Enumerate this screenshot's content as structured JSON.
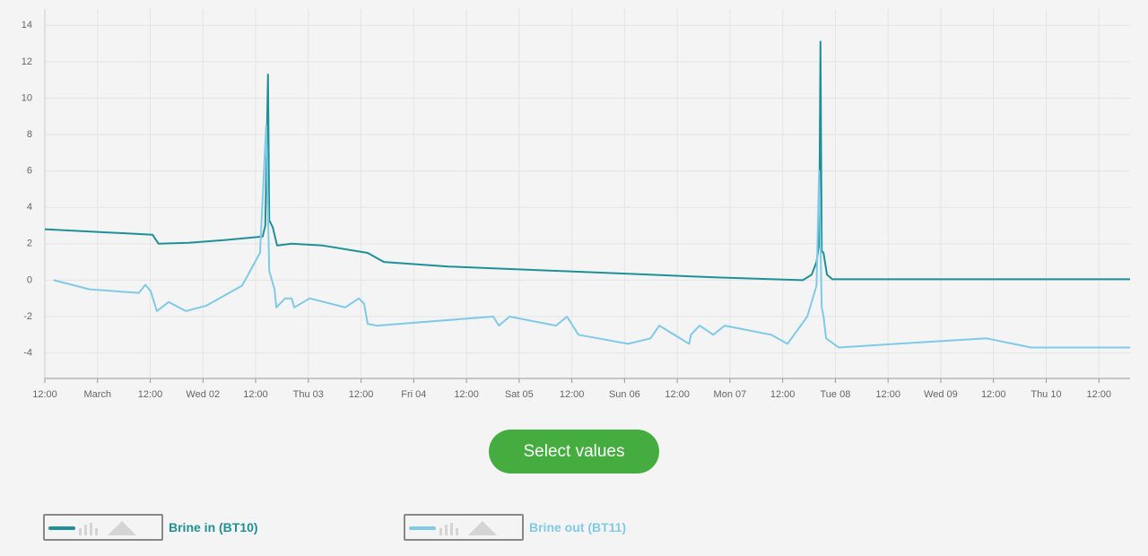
{
  "chart_data": {
    "type": "line",
    "xlim": [
      0,
      247.1
    ],
    "xticks": [
      {
        "value": 0,
        "label": "12:00"
      },
      {
        "value": 12,
        "label": "March"
      },
      {
        "value": 24,
        "label": "12:00"
      },
      {
        "value": 36,
        "label": "Wed 02"
      },
      {
        "value": 48,
        "label": "12:00"
      },
      {
        "value": 60,
        "label": "Thu 03"
      },
      {
        "value": 72,
        "label": "12:00"
      },
      {
        "value": 84,
        "label": "Fri 04"
      },
      {
        "value": 96,
        "label": "12:00"
      },
      {
        "value": 108,
        "label": "Sat 05"
      },
      {
        "value": 120,
        "label": "12:00"
      },
      {
        "value": 132,
        "label": "Sun 06"
      },
      {
        "value": 144,
        "label": "12:00"
      },
      {
        "value": 156,
        "label": "Mon 07"
      },
      {
        "value": 168,
        "label": "12:00"
      },
      {
        "value": 180,
        "label": "Tue 08"
      },
      {
        "value": 192,
        "label": "12:00"
      },
      {
        "value": 204,
        "label": "Wed 09"
      },
      {
        "value": 216,
        "label": "12:00"
      },
      {
        "value": 228,
        "label": "Thu 10"
      },
      {
        "value": 240,
        "label": "12:00"
      }
    ],
    "ylim": [
      -5.4,
      14.9
    ],
    "yticks": [
      -4,
      -2,
      0,
      2,
      4,
      6,
      8,
      10,
      12,
      14
    ],
    "grid": true,
    "series": [
      {
        "name": "Brine in (BT10)",
        "color": "#1e9096",
        "x": [
          0,
          24.5,
          25.9,
          32.7,
          40.8,
          49.6,
          50.2,
          50.8,
          51.1,
          51.9,
          52.9,
          56.2,
          63.3,
          73.5,
          77.2,
          91.9,
          112.3,
          132.8,
          153.2,
          172.6,
          174.6,
          175.7,
          176.3,
          176.6,
          176.9,
          177.3,
          178.1,
          179.3,
          247.1
        ],
        "values": [
          2.8,
          2.5,
          2.0,
          2.05,
          2.2,
          2.4,
          3.0,
          11.3,
          3.3,
          2.9,
          1.9,
          2.0,
          1.9,
          1.5,
          1.0,
          0.75,
          0.55,
          0.35,
          0.15,
          0.0,
          0.3,
          1.0,
          2.0,
          13.1,
          1.6,
          1.5,
          0.3,
          0.05,
          0.05
        ]
      },
      {
        "name": "Brine out (BT11)",
        "color": "#7fcae6",
        "x": [
          2.0,
          10.2,
          21.4,
          22.9,
          24.1,
          25.5,
          28.2,
          32.1,
          36.8,
          44.9,
          49.0,
          50.4,
          51.1,
          52.3,
          52.7,
          54.7,
          56.2,
          56.8,
          60.3,
          68.4,
          71.5,
          72.7,
          73.5,
          75.6,
          102.1,
          103.4,
          105.8,
          116.4,
          118.9,
          121.5,
          132.8,
          137.9,
          139.9,
          146.7,
          147.1,
          149.1,
          152.2,
          154.8,
          165.4,
          169.1,
          173.6,
          175.7,
          176.3,
          176.9,
          177.3,
          177.9,
          180.8,
          194.0,
          214.4,
          224.6,
          247.1
        ],
        "values": [
          0.0,
          -0.5,
          -0.7,
          -0.25,
          -0.6,
          -1.7,
          -1.2,
          -1.7,
          -1.4,
          -0.3,
          1.5,
          8.5,
          0.5,
          -0.5,
          -1.5,
          -1.0,
          -1.0,
          -1.5,
          -1.0,
          -1.5,
          -1.0,
          -1.3,
          -2.4,
          -2.5,
          -2.0,
          -2.5,
          -2.0,
          -2.5,
          -2.0,
          -3.0,
          -3.5,
          -3.2,
          -2.5,
          -3.5,
          -3.0,
          -2.5,
          -3.0,
          -2.5,
          -3.0,
          -3.5,
          -2.0,
          -0.3,
          6.0,
          -1.5,
          -2.0,
          -3.2,
          -3.7,
          -3.5,
          -3.2,
          -3.7,
          -3.7
        ]
      }
    ]
  },
  "button": {
    "label": "Select values"
  }
}
